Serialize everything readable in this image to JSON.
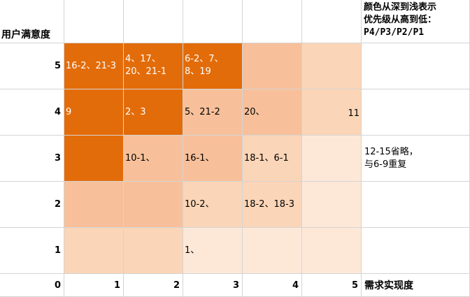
{
  "y_axis_title": "用户满意度",
  "x_axis_title": "需求实现度",
  "legend_note": "颜色从深到浅表示\n优先级从高到低：\nP4/P3/P2/P1",
  "side_note": "12-15省略，\n与6-9重复",
  "y_labels": [
    "5",
    "4",
    "3",
    "2",
    "1"
  ],
  "x_labels": [
    "0",
    "1",
    "2",
    "3",
    "4",
    "5"
  ],
  "rows": [
    {
      "y": "5",
      "cells": [
        {
          "text": "16-2、21-3",
          "level": "P4"
        },
        {
          "text": "4、17、\n20、21-1",
          "level": "P4"
        },
        {
          "text": "6-2、7、\n8、19",
          "level": "P4"
        },
        {
          "text": "",
          "level": "P3"
        },
        {
          "text": "",
          "level": "P2"
        }
      ]
    },
    {
      "y": "4",
      "cells": [
        {
          "text": "9",
          "level": "P4"
        },
        {
          "text": "2、3",
          "level": "P4"
        },
        {
          "text": "5、21-2",
          "level": "P3"
        },
        {
          "text": "20、",
          "level": "P3"
        },
        {
          "text": "11",
          "level": "P2"
        }
      ]
    },
    {
      "y": "3",
      "cells": [
        {
          "text": "",
          "level": "P4"
        },
        {
          "text": "10-1、",
          "level": "P3"
        },
        {
          "text": "16-1、",
          "level": "P3"
        },
        {
          "text": "18-1、6-1",
          "level": "P2"
        },
        {
          "text": "",
          "level": "P1"
        }
      ]
    },
    {
      "y": "2",
      "cells": [
        {
          "text": "",
          "level": "P3"
        },
        {
          "text": "",
          "level": "P3"
        },
        {
          "text": "10-2、",
          "level": "P2"
        },
        {
          "text": "18-2、18-3",
          "level": "P2"
        },
        {
          "text": "",
          "level": "P1"
        }
      ]
    },
    {
      "y": "1",
      "cells": [
        {
          "text": "",
          "level": "P2"
        },
        {
          "text": "",
          "level": "P2"
        },
        {
          "text": "1、",
          "level": "P1"
        },
        {
          "text": "",
          "level": "P1"
        },
        {
          "text": "",
          "level": "P1"
        }
      ]
    }
  ],
  "level_colors": {
    "P4": "#e36c0a",
    "P3": "#f7c09a",
    "P2": "#fbd5b7",
    "P1": "#fde8d8"
  }
}
